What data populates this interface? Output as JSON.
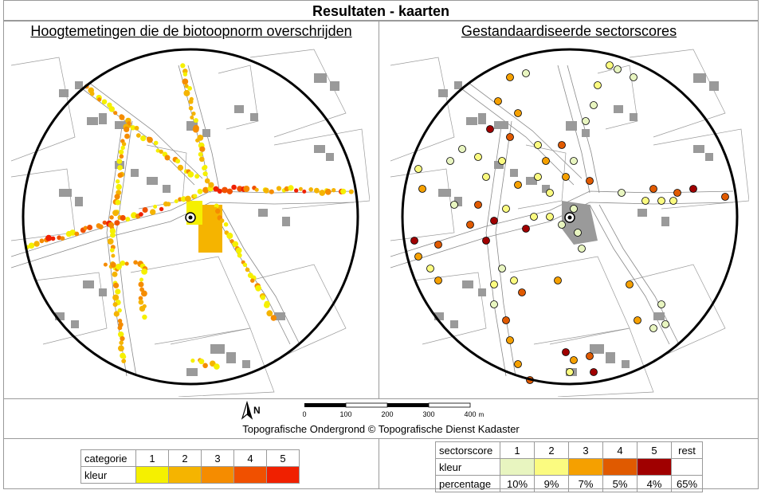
{
  "title": "Resultaten - kaarten",
  "left_panel": {
    "title": "Hoogtemetingen die de biotoopnorm overschrijden"
  },
  "right_panel": {
    "title": "Gestandaardiseerde sectorscores"
  },
  "north_label": "N",
  "scale": {
    "ticks": [
      "0",
      "100",
      "200",
      "300",
      "400"
    ],
    "unit": "m"
  },
  "credit": "Topografische Ondergrond © Topografische Dienst Kadaster",
  "legend_left": {
    "row_label_1": "categorie",
    "row_label_2": "kleur",
    "categories": [
      "1",
      "2",
      "3",
      "4",
      "5"
    ],
    "colors": [
      "#f5f000",
      "#f5b400",
      "#f58c00",
      "#f05000",
      "#f02000"
    ]
  },
  "legend_right": {
    "row_label_1": "sectorscore",
    "row_label_2": "kleur",
    "row_label_3": "percentage",
    "scores": [
      "1",
      "2",
      "3",
      "4",
      "5",
      "rest"
    ],
    "colors": [
      "#e8f5c0",
      "#fbfb80",
      "#f5a000",
      "#e05a00",
      "#a00000",
      "#ffffff"
    ],
    "percentages": [
      "10%",
      "9%",
      "7%",
      "5%",
      "4%",
      "65%"
    ]
  }
}
